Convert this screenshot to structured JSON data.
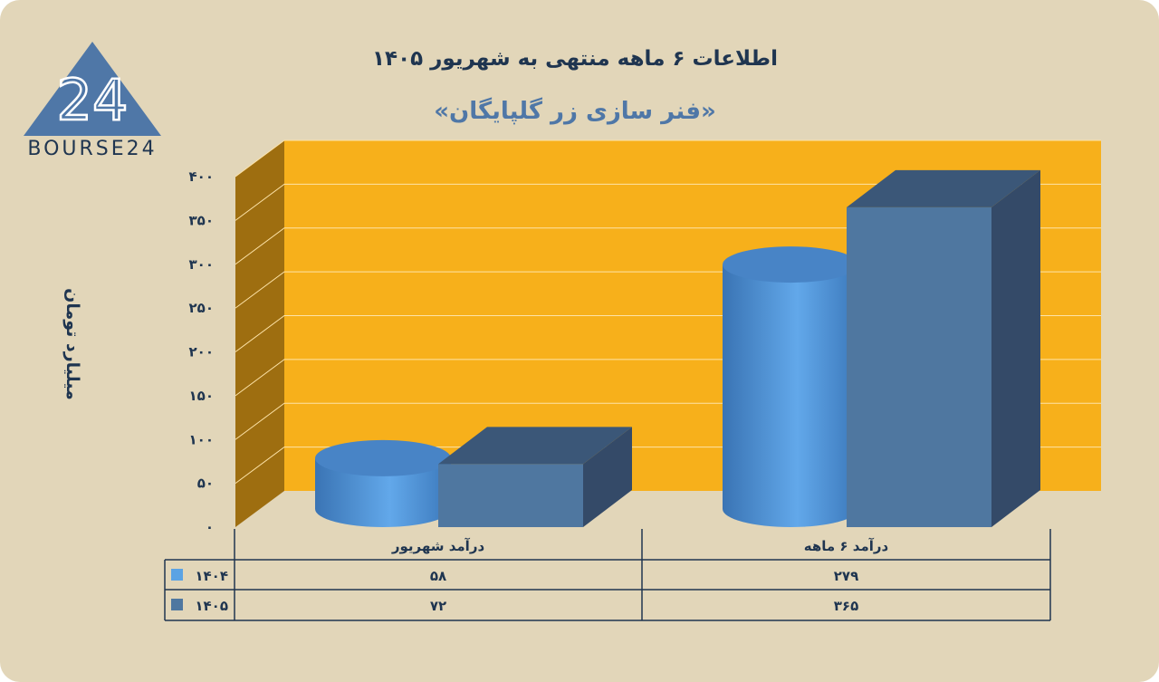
{
  "title": "اطلاعات ۶ ماهه منتهی به شهریور ۱۴۰۵",
  "subtitle": "«فنر سازی زر گلپایگان»",
  "logo_text": "BOURSE24",
  "logo_mark": "24",
  "colors": {
    "wall": "#f7b01b",
    "side_wall": "#9e6e10",
    "background": "#e2d6b9",
    "series_1404": "#5ba3e4",
    "series_1405": "#4f77a0"
  },
  "chart_data": {
    "type": "bar",
    "ylabel": "میلیارد تومان",
    "ylim": [
      0,
      400
    ],
    "yticks": [
      0,
      50,
      100,
      150,
      200,
      250,
      300,
      350,
      400
    ],
    "ytick_labels": [
      "۰",
      "۵۰",
      "۱۰۰",
      "۱۵۰",
      "۲۰۰",
      "۲۵۰",
      "۳۰۰",
      "۳۵۰",
      "۴۰۰"
    ],
    "categories": [
      "درآمد  شهریور",
      "درآمد ۶  ماهه"
    ],
    "series": [
      {
        "name": "۱۴۰۴",
        "values": [
          58,
          279
        ],
        "value_labels": [
          "۵۸",
          "۲۷۹"
        ],
        "shape": "cylinder"
      },
      {
        "name": "۱۴۰۵",
        "values": [
          72,
          365
        ],
        "value_labels": [
          "۷۲",
          "۳۶۵"
        ],
        "shape": "box"
      }
    ],
    "grid": true,
    "data_table": true
  }
}
